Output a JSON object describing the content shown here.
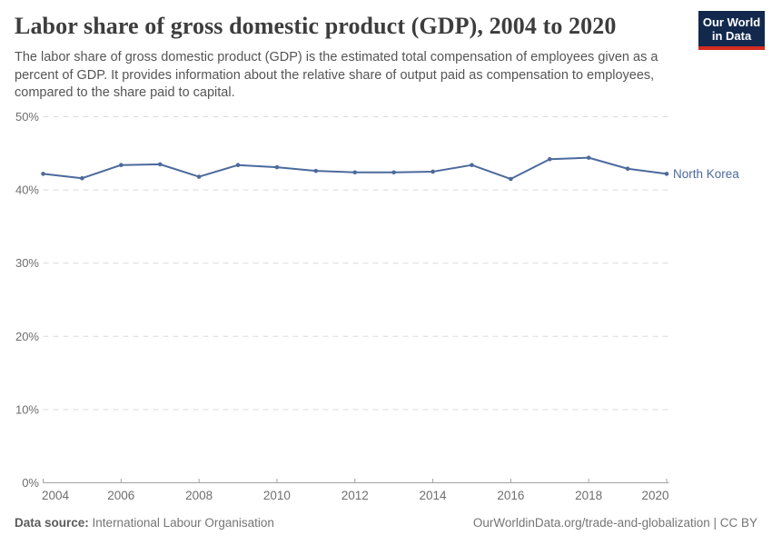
{
  "header": {
    "title": "Labor share of gross domestic product (GDP), 2004 to 2020",
    "subtitle": "The labor share of gross domestic product (GDP) is the estimated total compensation of employees given as a percent of GDP. It provides information about the relative share of output paid as compensation to employees, compared to the share paid to capital.",
    "logo": {
      "line1": "Our World",
      "line2": "in Data",
      "bg_color": "#12294d",
      "accent_color": "#d42b21"
    }
  },
  "chart_data": {
    "type": "line",
    "title": "Labor share of gross domestic product (GDP), 2004 to 2020",
    "x": [
      2004,
      2005,
      2006,
      2007,
      2008,
      2009,
      2010,
      2011,
      2012,
      2013,
      2014,
      2015,
      2016,
      2017,
      2018,
      2019,
      2020
    ],
    "series": [
      {
        "name": "North Korea",
        "color": "#4c6a9c",
        "values": [
          42.2,
          41.6,
          43.4,
          43.5,
          41.8,
          43.4,
          43.1,
          42.6,
          42.4,
          42.4,
          42.5,
          43.4,
          41.5,
          44.2,
          44.4,
          42.9,
          42.2
        ]
      }
    ],
    "xlabel": "",
    "ylabel": "",
    "ylim": [
      0,
      50
    ],
    "yticks": [
      0,
      10,
      20,
      30,
      40,
      50
    ],
    "ytick_format": "{}%",
    "xticks": [
      2004,
      2006,
      2008,
      2010,
      2012,
      2014,
      2016,
      2018,
      2020
    ],
    "grid": "horizontal-dashed",
    "legend_position": "end-of-line-label"
  },
  "footer": {
    "datasource_label": "Data source:",
    "datasource_value": "International Labour Organisation",
    "link_text": "OurWorldinData.org/trade-and-globalization | CC BY"
  }
}
